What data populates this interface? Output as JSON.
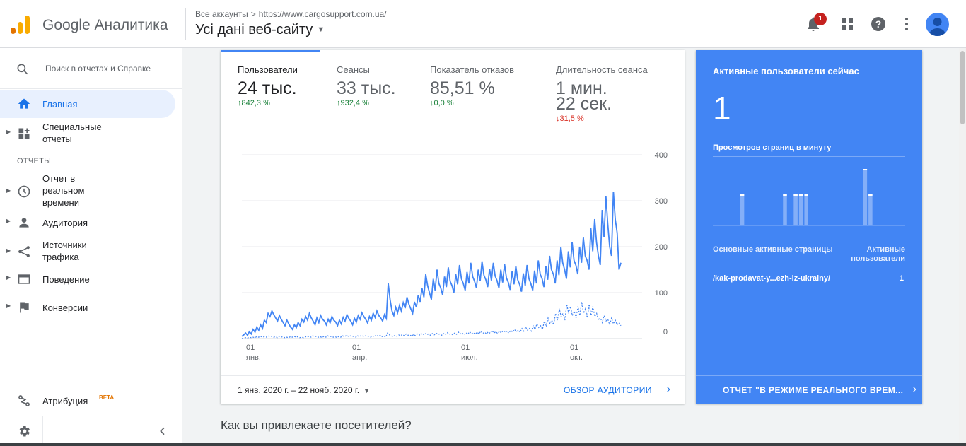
{
  "app": {
    "title": "Google Аналитика"
  },
  "header": {
    "breadcrumb": {
      "root": "Все аккаунты",
      "separator": ">",
      "account": "https://www.cargosupport.com.ua/"
    },
    "view_title": "Усі дані веб-сайту",
    "notification_count": "1",
    "icons": [
      "bell-icon",
      "apps-grid-icon",
      "help-icon",
      "more-vert-icon",
      "account-avatar-icon"
    ]
  },
  "sidebar": {
    "search_placeholder": "Поиск в отчетах и Справке",
    "home": "Главная",
    "custom_reports_1": "Специальные",
    "custom_reports_2": "отчеты",
    "section_reports": "ОТЧЕТЫ",
    "realtime_1": "Отчет в",
    "realtime_2": "реальном",
    "realtime_3": "времени",
    "audience": "Аудитория",
    "acquisition_1": "Источники",
    "acquisition_2": "трафика",
    "behavior": "Поведение",
    "conversions": "Конверсии",
    "attribution": "Атрибуция",
    "attribution_badge": "BETA"
  },
  "main_card": {
    "metrics": [
      {
        "name": "Пользователи",
        "value": "24 тыс.",
        "delta": "842,3 %",
        "direction": "up"
      },
      {
        "name": "Сеансы",
        "value": "33 тыс.",
        "delta": "932,4 %",
        "direction": "up"
      },
      {
        "name": "Показатель отказов",
        "value": "85,51 %",
        "delta": "0,0 %",
        "direction": "down"
      },
      {
        "name": "Длительность сеанса",
        "value_line1": "1 мин.",
        "value_line2": "22 сек.",
        "delta": "31,5 %",
        "direction": "down"
      }
    ],
    "date_range": "1 янв. 2020 г. – 22 нояб. 2020 г.",
    "footer_link": "ОБЗОР АУДИТОРИИ"
  },
  "chart_data": {
    "type": "line",
    "y_ticks": [
      "400",
      "300",
      "200",
      "100",
      "0"
    ],
    "ylim": [
      0,
      400
    ],
    "x_ticks": [
      {
        "day": "01",
        "month": "янв."
      },
      {
        "day": "01",
        "month": "апр."
      },
      {
        "day": "01",
        "month": "июл."
      },
      {
        "day": "01",
        "month": "окт."
      }
    ],
    "series": [
      {
        "style": "solid",
        "values": [
          5,
          8,
          12,
          7,
          15,
          10,
          20,
          14,
          25,
          18,
          30,
          22,
          40,
          35,
          55,
          48,
          60,
          52,
          45,
          38,
          50,
          42,
          35,
          28,
          40,
          32,
          25,
          20,
          30,
          24,
          35,
          28,
          42,
          36,
          48,
          40,
          55,
          45,
          38,
          30,
          45,
          35,
          50,
          42,
          38,
          30,
          42,
          34,
          48,
          40,
          36,
          28,
          40,
          32,
          46,
          38,
          52,
          44,
          38,
          30,
          44,
          36,
          50,
          42,
          56,
          48,
          42,
          34,
          48,
          40,
          55,
          46,
          60,
          50,
          45,
          38,
          52,
          44,
          120,
          85,
          60,
          50,
          68,
          56,
          72,
          60,
          78,
          66,
          90,
          75,
          65,
          55,
          80,
          68,
          95,
          80,
          110,
          90,
          140,
          115,
          100,
          85,
          130,
          105,
          150,
          120,
          110,
          95,
          135,
          112,
          155,
          125,
          115,
          100,
          140,
          118,
          160,
          130,
          120,
          105,
          145,
          120,
          165,
          135,
          125,
          110,
          150,
          125,
          168,
          138,
          128,
          112,
          152,
          126,
          165,
          136,
          126,
          110,
          150,
          122,
          162,
          132,
          122,
          106,
          146,
          118,
          158,
          128,
          118,
          102,
          142,
          115,
          160,
          130,
          120,
          105,
          148,
          120,
          170,
          140,
          130,
          112,
          158,
          128,
          180,
          150,
          140,
          120,
          170,
          138,
          200,
          165,
          150,
          130,
          190,
          155,
          210,
          170,
          160,
          140,
          200,
          165,
          220,
          180,
          170,
          150,
          240,
          190,
          260,
          210,
          180,
          160,
          280,
          220,
          310,
          250,
          200,
          180,
          320,
          260,
          230,
          150,
          165
        ]
      },
      {
        "style": "dashed",
        "values": [
          0,
          1,
          2,
          1,
          3,
          2,
          3,
          2,
          4,
          3,
          5,
          3,
          4,
          3,
          6,
          4,
          5,
          3,
          4,
          2,
          5,
          3,
          4,
          2,
          3,
          2,
          4,
          3,
          5,
          3,
          4,
          2,
          3,
          2,
          4,
          3,
          5,
          3,
          6,
          4,
          5,
          3,
          4,
          2,
          5,
          3,
          6,
          4,
          5,
          3,
          4,
          2,
          5,
          3,
          6,
          4,
          7,
          5,
          6,
          4,
          5,
          3,
          6,
          4,
          7,
          5,
          6,
          4,
          5,
          3,
          6,
          4,
          8,
          5,
          7,
          4,
          6,
          3,
          12,
          8,
          6,
          4,
          7,
          5,
          8,
          6,
          9,
          6,
          10,
          7,
          8,
          5,
          9,
          6,
          10,
          7,
          11,
          8,
          12,
          8,
          10,
          7,
          11,
          8,
          12,
          9,
          10,
          7,
          11,
          8,
          13,
          9,
          11,
          8,
          12,
          9,
          14,
          10,
          12,
          8,
          13,
          9,
          15,
          10,
          13,
          9,
          14,
          10,
          16,
          11,
          14,
          10,
          15,
          11,
          17,
          12,
          15,
          11,
          16,
          12,
          18,
          13,
          16,
          12,
          18,
          14,
          20,
          15,
          18,
          14,
          22,
          16,
          25,
          18,
          22,
          16,
          28,
          20,
          32,
          24,
          28,
          20,
          38,
          28,
          45,
          32,
          40,
          30,
          55,
          40,
          65,
          48,
          55,
          40,
          75,
          55,
          70,
          50,
          60,
          45,
          70,
          50,
          80,
          55,
          65,
          45,
          75,
          50,
          70,
          48,
          55,
          40,
          45,
          35,
          50,
          38,
          42,
          30,
          45,
          32,
          40,
          30,
          35,
          28
        ]
      }
    ]
  },
  "realtime_card": {
    "title": "Активные пользователи сейчас",
    "count": "1",
    "pageviews_label": "Просмотров страниц в минуту",
    "bars": [
      0,
      0,
      0,
      0,
      0,
      0.55,
      0,
      0,
      0,
      0,
      0,
      0,
      0,
      0.55,
      0,
      0.55,
      0.55,
      0.55,
      0,
      0,
      0,
      0,
      0,
      0,
      0,
      0,
      0,
      0,
      1.0,
      0.55,
      0,
      0,
      0,
      0,
      0,
      0
    ],
    "col_pages": "Основные активные страницы",
    "col_users": "Активные пользователи",
    "top_page": "/kak-prodavat-y...ezh-iz-ukrainy/",
    "top_page_users": "1",
    "footer_link": "ОТЧЕТ \"В РЕЖИМЕ РЕАЛЬНОГО ВРЕМ..."
  },
  "section_question": "Как вы привлекаете посетителей?",
  "colors": {
    "accent": "#4285f4",
    "up": "#188038",
    "down": "#d93025",
    "nav_active_bg": "#e8f0fe"
  }
}
